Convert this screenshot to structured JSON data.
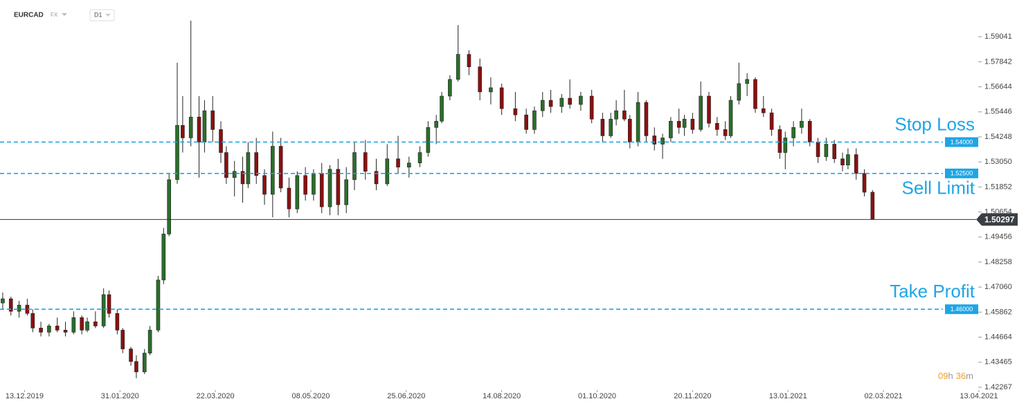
{
  "header": {
    "symbol": "EURCAD",
    "market": "FX",
    "interval": "D1"
  },
  "timer": {
    "hours": "09",
    "h": "h",
    "minutes": "36",
    "m": "m"
  },
  "chart_data": {
    "type": "candlestick",
    "x": [
      -8,
      -5,
      -2,
      1,
      3,
      6,
      9,
      12,
      15,
      18,
      21,
      23,
      26,
      29,
      31,
      34,
      36,
      39,
      41,
      44,
      46,
      49,
      51,
      53,
      56,
      58,
      61,
      64,
      66,
      69,
      72,
      74,
      77,
      80,
      82,
      85,
      88,
      91,
      94,
      97,
      100,
      103,
      106,
      109,
      112,
      115,
      118,
      121,
      125,
      129,
      133,
      137,
      141,
      145,
      148,
      151,
      153,
      156,
      159,
      163,
      167,
      171,
      175,
      180,
      184,
      187,
      190,
      193,
      197,
      200,
      204,
      208,
      212,
      215,
      217,
      220,
      222,
      225,
      228,
      231,
      234,
      237,
      240,
      242,
      245,
      248,
      251,
      254,
      257,
      259,
      262,
      265,
      268,
      271,
      274,
      277,
      279,
      282,
      285,
      288,
      291,
      294,
      297,
      300,
      302,
      305,
      308,
      311
    ],
    "open": [
      1.463,
      1.465,
      1.459,
      1.462,
      1.458,
      1.451,
      1.449,
      1.452,
      1.45,
      1.449,
      1.456,
      1.45,
      1.454,
      1.452,
      1.467,
      1.458,
      1.45,
      1.441,
      1.435,
      1.43,
      1.439,
      1.45,
      1.474,
      1.496,
      1.522,
      1.548,
      1.542,
      1.552,
      1.54,
      1.555,
      1.546,
      1.535,
      1.523,
      1.526,
      1.52,
      1.535,
      1.524,
      1.515,
      1.538,
      1.518,
      1.508,
      1.524,
      1.515,
      1.525,
      1.509,
      1.527,
      1.51,
      1.522,
      1.535,
      1.526,
      1.52,
      1.532,
      1.528,
      1.53,
      1.535,
      1.547,
      1.55,
      1.562,
      1.57,
      1.582,
      1.576,
      1.564,
      1.566,
      1.556,
      1.553,
      1.546,
      1.555,
      1.56,
      1.557,
      1.561,
      1.558,
      1.562,
      1.551,
      1.543,
      1.551,
      1.555,
      1.551,
      1.54,
      1.559,
      1.543,
      1.539,
      1.542,
      1.55,
      1.547,
      1.551,
      1.546,
      1.562,
      1.549,
      1.546,
      1.543,
      1.56,
      1.568,
      1.57,
      1.556,
      1.554,
      1.546,
      1.535,
      1.542,
      1.547,
      1.55,
      1.54,
      1.533,
      1.539,
      1.532,
      1.529,
      1.534,
      1.525,
      1.516
    ],
    "high": [
      1.468,
      1.466,
      1.464,
      1.465,
      1.46,
      1.454,
      1.453,
      1.456,
      1.454,
      1.459,
      1.457,
      1.456,
      1.459,
      1.47,
      1.469,
      1.46,
      1.451,
      1.442,
      1.438,
      1.441,
      1.452,
      1.476,
      1.499,
      1.525,
      1.578,
      1.562,
      1.5981,
      1.562,
      1.56,
      1.562,
      1.55,
      1.538,
      1.531,
      1.533,
      1.54,
      1.542,
      1.527,
      1.545,
      1.542,
      1.523,
      1.526,
      1.528,
      1.527,
      1.53,
      1.529,
      1.532,
      1.528,
      1.54,
      1.541,
      1.532,
      1.539,
      1.543,
      1.533,
      1.538,
      1.55,
      1.553,
      1.564,
      1.572,
      1.596,
      1.584,
      1.58,
      1.571,
      1.568,
      1.564,
      1.556,
      1.557,
      1.564,
      1.565,
      1.563,
      1.57,
      1.564,
      1.565,
      1.554,
      1.554,
      1.56,
      1.565,
      1.553,
      1.564,
      1.56,
      1.547,
      1.544,
      1.552,
      1.556,
      1.553,
      1.554,
      1.569,
      1.564,
      1.552,
      1.55,
      1.562,
      1.578,
      1.573,
      1.571,
      1.562,
      1.556,
      1.548,
      1.545,
      1.55,
      1.556,
      1.551,
      1.542,
      1.542,
      1.541,
      1.535,
      1.537,
      1.537,
      1.527,
      1.517
    ],
    "low": [
      1.46,
      1.457,
      1.456,
      1.457,
      1.449,
      1.447,
      1.447,
      1.449,
      1.447,
      1.448,
      1.448,
      1.449,
      1.451,
      1.451,
      1.456,
      1.448,
      1.439,
      1.433,
      1.427,
      1.429,
      1.438,
      1.449,
      1.472,
      1.495,
      1.52,
      1.535,
      1.538,
      1.523,
      1.535,
      1.54,
      1.53,
      1.52,
      1.514,
      1.511,
      1.518,
      1.52,
      1.51,
      1.504,
      1.516,
      1.504,
      1.506,
      1.512,
      1.512,
      1.506,
      1.505,
      1.505,
      1.506,
      1.517,
      1.522,
      1.517,
      1.519,
      1.525,
      1.523,
      1.528,
      1.533,
      1.539,
      1.549,
      1.56,
      1.569,
      1.572,
      1.56,
      1.558,
      1.553,
      1.55,
      1.544,
      1.544,
      1.552,
      1.554,
      1.554,
      1.556,
      1.555,
      1.549,
      1.54,
      1.542,
      1.548,
      1.55,
      1.537,
      1.538,
      1.54,
      1.536,
      1.532,
      1.54,
      1.544,
      1.543,
      1.544,
      1.545,
      1.547,
      1.543,
      1.541,
      1.542,
      1.558,
      1.562,
      1.554,
      1.552,
      1.543,
      1.532,
      1.527,
      1.538,
      1.544,
      1.538,
      1.53,
      1.531,
      1.53,
      1.526,
      1.527,
      1.522,
      1.514,
      1.503
    ],
    "close": [
      1.465,
      1.459,
      1.462,
      1.458,
      1.451,
      1.449,
      1.452,
      1.45,
      1.449,
      1.456,
      1.45,
      1.454,
      1.452,
      1.467,
      1.458,
      1.45,
      1.441,
      1.435,
      1.43,
      1.439,
      1.45,
      1.474,
      1.496,
      1.522,
      1.548,
      1.542,
      1.552,
      1.54,
      1.555,
      1.546,
      1.535,
      1.523,
      1.526,
      1.52,
      1.535,
      1.524,
      1.515,
      1.538,
      1.518,
      1.508,
      1.524,
      1.515,
      1.525,
      1.509,
      1.527,
      1.51,
      1.522,
      1.535,
      1.526,
      1.52,
      1.532,
      1.528,
      1.53,
      1.535,
      1.547,
      1.55,
      1.562,
      1.57,
      1.582,
      1.576,
      1.564,
      1.566,
      1.556,
      1.553,
      1.546,
      1.555,
      1.56,
      1.557,
      1.561,
      1.558,
      1.562,
      1.551,
      1.543,
      1.551,
      1.555,
      1.551,
      1.54,
      1.559,
      1.543,
      1.539,
      1.542,
      1.55,
      1.547,
      1.551,
      1.546,
      1.562,
      1.549,
      1.546,
      1.543,
      1.56,
      1.568,
      1.57,
      1.556,
      1.554,
      1.546,
      1.535,
      1.542,
      1.547,
      1.55,
      1.54,
      1.533,
      1.539,
      1.532,
      1.529,
      1.534,
      1.525,
      1.516,
      1.503
    ],
    "up_color": "#2b6e2b",
    "down_color": "#8b1010",
    "xlim": [
      -9,
      349
    ],
    "xticks": [
      {
        "value": 0,
        "label": "13.12.2019"
      },
      {
        "value": 35,
        "label": "31.01.2020"
      },
      {
        "value": 70,
        "label": "22.03.2020"
      },
      {
        "value": 105,
        "label": "08.05.2020"
      },
      {
        "value": 140,
        "label": "25.06.2020"
      },
      {
        "value": 175,
        "label": "14.08.2020"
      },
      {
        "value": 210,
        "label": "01.10.2020"
      },
      {
        "value": 245,
        "label": "20.11.2020"
      },
      {
        "value": 280,
        "label": "13.01.2021"
      },
      {
        "value": 315,
        "label": "02.03.2021"
      },
      {
        "value": 350,
        "label": "13.04.2021"
      }
    ],
    "ylim": [
      1.422,
      1.608
    ],
    "yticks": [
      1.59041,
      1.57842,
      1.56644,
      1.55446,
      1.54248,
      {
        "value": 1.5305,
        "label": "1.53050"
      },
      1.51852,
      1.50654,
      1.49456,
      1.48258,
      {
        "value": 1.4706,
        "label": "1.47060"
      },
      1.45862,
      1.44664,
      1.43465,
      1.42267
    ],
    "levels": [
      {
        "name": "Stop Loss",
        "value": 1.54,
        "label": "1.54000",
        "placement": "above"
      },
      {
        "name": "Sell Limit",
        "value": 1.525,
        "label": "1.52500",
        "placement": "below"
      },
      {
        "name": "Take Profit",
        "value": 1.46,
        "label": "1.46000",
        "placement": "above"
      }
    ],
    "level_color": "#1ea5e6",
    "current_price": 1.50297
  }
}
